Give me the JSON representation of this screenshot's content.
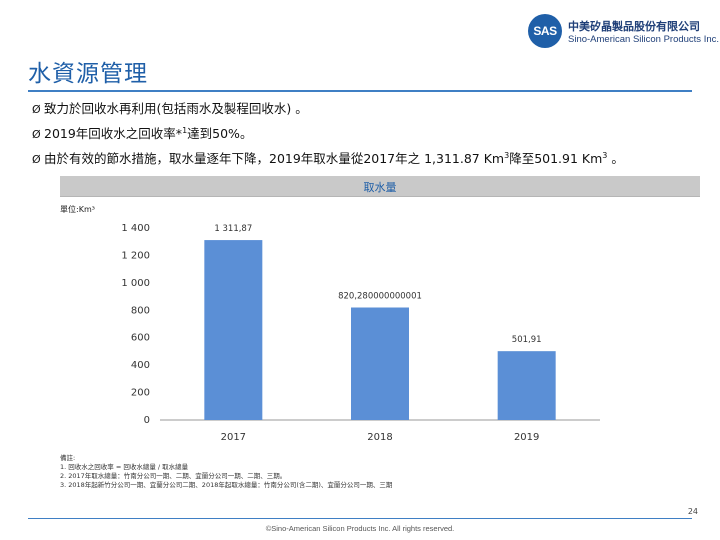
{
  "header": {
    "logo_mark": "SAS",
    "company_cn": "中美矽晶製品股份有限公司",
    "company_en": "Sino-American Silicon Products Inc."
  },
  "page_title": "水資源管理",
  "bullets": [
    {
      "marker": "Ø",
      "text": "致力於回收水再利用(包括雨水及製程回收水) 。"
    },
    {
      "marker": "Ø",
      "text_before": "2019年回收水之回收率*",
      "sup": "1",
      "text_after": "達到50%。"
    },
    {
      "marker": "Ø",
      "text_before": "由於有效的節水措施，取水量逐年下降，2019年取水量從2017年之 1,311.87 Km",
      "sup1": "3",
      "text_mid": "降至501.91 Km",
      "sup2": "3",
      "text_after": " 。"
    }
  ],
  "chart_data": {
    "type": "bar",
    "title": "取水量",
    "unit_label": "單位:Km³",
    "categories": [
      "2017",
      "2018",
      "2019"
    ],
    "values": [
      1311.87,
      820.28,
      501.91
    ],
    "data_labels": [
      "1 311,87",
      "820,280000000001",
      "501,91"
    ],
    "y_ticks": [
      0,
      200,
      400,
      600,
      800,
      1000,
      1200,
      1400
    ],
    "y_tick_labels": [
      "0",
      "200",
      "400",
      "600",
      "800",
      "1 000",
      "1 200",
      "1 400"
    ],
    "ylim": [
      0,
      1400
    ],
    "bar_color": "#5b8fd6",
    "xlabel": "",
    "ylabel": ""
  },
  "notes": {
    "heading": "備註:",
    "lines": [
      "1. 回收水之回收率 = 回收水總量 / 取水總量",
      "2. 2017年取水總量：竹南分公司一期、二期、宜蘭分公司一期、二期、三期。",
      "3. 2018年起新竹分公司一期、宜蘭分公司二期、2018年起取水總量：竹南分公司(含二期)、宜蘭分公司一期、三期"
    ]
  },
  "page_number": "24",
  "copyright": "©Sino-American Silicon Products Inc. All rights reserved."
}
